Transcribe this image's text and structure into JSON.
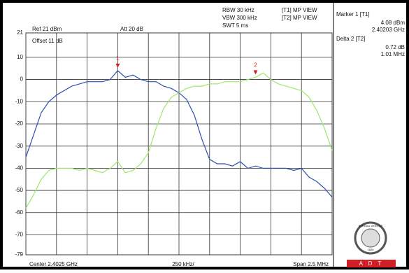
{
  "chart_data": {
    "type": "line",
    "header": {
      "rbw": "RBW 30 kHz",
      "vbw": "VBW 300 kHz",
      "swt": "SWT 5 ms",
      "t1": "[T1] MP VIEW",
      "t2": "[T2] MP VIEW"
    },
    "ref": "Ref 21 dBm",
    "att": "Att 20 dB",
    "offset": "Offset 11 dB",
    "markers": [
      {
        "label": "1",
        "title": "Marker 1 [T1]",
        "level": "4.08 dBm",
        "freq": "2.40203 GHz"
      },
      {
        "label": "2",
        "title": "Delta 2 [T2]",
        "level": "0.72 dB",
        "freq": "1.01 MHz"
      }
    ],
    "x_labels": {
      "center": "Center 2.4025 GHz",
      "div": "250 kHz/",
      "span": "Span 2.5 MHz"
    },
    "logo": {
      "name": "BUREAU VERITAS",
      "year": "1828",
      "band": "A D T"
    },
    "ylim": [
      -79,
      21
    ],
    "yticks": [
      21,
      10,
      0,
      -10,
      -20,
      -30,
      -40,
      -50,
      -60,
      -70,
      -79
    ],
    "grid": true,
    "series": [
      {
        "name": "[T1]",
        "color": "#2a4fb0",
        "values": [
          -35,
          -25,
          -15,
          -10,
          -7,
          -5,
          -3,
          -2,
          -1,
          -1,
          -1,
          0,
          4,
          1,
          2,
          0,
          -1,
          -1,
          -3,
          -4,
          -6,
          -9,
          -16,
          -27,
          -36,
          -38,
          -38,
          -39,
          -37,
          -40,
          -39,
          -40,
          -40,
          -40,
          -40,
          -41,
          -40,
          -44,
          -46,
          -49,
          -53
        ]
      },
      {
        "name": "[T2]",
        "color": "#9de86a",
        "values": [
          -58,
          -52,
          -45,
          -41,
          -40,
          -40,
          -40,
          -41,
          -40,
          -41,
          -42,
          -40,
          -37,
          -42,
          -41,
          -38,
          -33,
          -22,
          -13,
          -8,
          -6,
          -4,
          -3,
          -3,
          -2,
          -2,
          -1,
          -1,
          -1,
          0,
          1,
          3,
          0,
          -2,
          -3,
          -4,
          -5,
          -8,
          -14,
          -22,
          -32
        ]
      }
    ]
  }
}
